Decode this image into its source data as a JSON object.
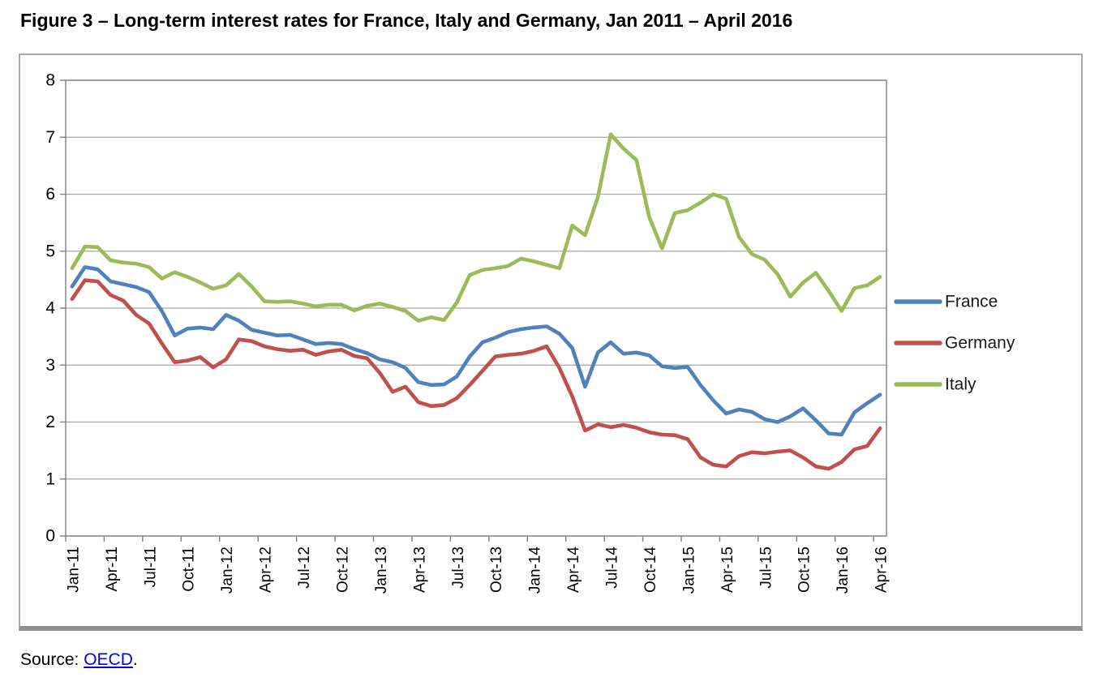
{
  "title": "Figure 3 – Long-term interest rates for France, Italy and Germany, Jan 2011 – April 2016",
  "source": {
    "prefix": "Source: ",
    "link_text": "OECD",
    "suffix": "."
  },
  "chart_data": {
    "type": "line",
    "title": "",
    "xlabel": "",
    "ylabel": "",
    "ylim": [
      0,
      8
    ],
    "yticks": [
      0,
      1,
      2,
      3,
      4,
      5,
      6,
      7,
      8
    ],
    "x_tick_every": 3,
    "grid": true,
    "legend_position": "right",
    "axis_color": "#808080",
    "grid_color": "#a6a6a6",
    "categories": [
      "Jan-11",
      "Feb-11",
      "Mar-11",
      "Apr-11",
      "May-11",
      "Jun-11",
      "Jul-11",
      "Aug-11",
      "Sep-11",
      "Oct-11",
      "Nov-11",
      "Dec-11",
      "Jan-12",
      "Feb-12",
      "Mar-12",
      "Apr-12",
      "May-12",
      "Jun-12",
      "Jul-12",
      "Aug-12",
      "Sep-12",
      "Oct-12",
      "Nov-12",
      "Dec-12",
      "Jan-13",
      "Feb-13",
      "Mar-13",
      "Apr-13",
      "May-13",
      "Jun-13",
      "Jul-13",
      "Aug-13",
      "Sep-13",
      "Oct-13",
      "Nov-13",
      "Dec-13",
      "Jan-14",
      "Feb-14",
      "Mar-14",
      "Apr-14",
      "May-14",
      "Jun-14",
      "Jul-14",
      "Aug-14",
      "Sep-14",
      "Oct-14",
      "Nov-14",
      "Dec-14",
      "Jan-15",
      "Feb-15",
      "Mar-15",
      "Apr-15",
      "May-15",
      "Jun-15",
      "Jul-15",
      "Aug-15",
      "Sep-15",
      "Oct-15",
      "Nov-15",
      "Dec-15",
      "Jan-16",
      "Feb-16",
      "Mar-16",
      "Apr-16"
    ],
    "series": [
      {
        "name": "France",
        "color": "#4F81BD",
        "values": [
          4.38,
          4.72,
          4.68,
          4.47,
          4.42,
          4.37,
          4.28,
          3.95,
          3.52,
          3.64,
          3.66,
          3.63,
          3.88,
          3.78,
          3.62,
          3.57,
          3.52,
          3.53,
          3.45,
          3.37,
          3.39,
          3.37,
          3.28,
          3.21,
          3.1,
          3.05,
          2.95,
          2.7,
          2.65,
          2.66,
          2.8,
          3.15,
          3.4,
          3.48,
          3.58,
          3.63,
          3.66,
          3.68,
          3.55,
          3.3,
          2.62,
          3.22,
          3.4,
          3.2,
          3.22,
          3.17,
          2.98,
          2.95,
          2.97,
          2.65,
          2.38,
          2.15,
          2.22,
          2.18,
          2.05,
          2.0,
          2.1,
          2.24,
          2.03,
          1.8,
          1.78,
          2.17,
          2.33,
          2.48
        ]
      },
      {
        "name": "Germany",
        "color": "#C0504D",
        "values": [
          4.16,
          4.49,
          4.47,
          4.23,
          4.13,
          3.88,
          3.73,
          3.38,
          3.05,
          3.08,
          3.14,
          2.96,
          3.1,
          3.45,
          3.42,
          3.33,
          3.28,
          3.25,
          3.27,
          3.18,
          3.24,
          3.27,
          3.16,
          3.12,
          2.86,
          2.53,
          2.62,
          2.35,
          2.28,
          2.3,
          2.42,
          2.65,
          2.9,
          3.15,
          3.18,
          3.2,
          3.25,
          3.33,
          2.95,
          2.45,
          1.85,
          1.96,
          1.91,
          1.95,
          1.9,
          1.82,
          1.78,
          1.77,
          1.7,
          1.38,
          1.25,
          1.22,
          1.4,
          1.47,
          1.45,
          1.48,
          1.5,
          1.38,
          1.22,
          1.18,
          1.3,
          1.52,
          1.58,
          1.89
        ]
      },
      {
        "name": "Italy",
        "color": "#9BBB59",
        "values": [
          4.7,
          5.08,
          5.07,
          4.84,
          4.8,
          4.78,
          4.72,
          4.52,
          4.63,
          4.55,
          4.45,
          4.34,
          4.4,
          4.6,
          4.38,
          4.12,
          4.11,
          4.12,
          4.08,
          4.03,
          4.06,
          4.06,
          3.96,
          4.04,
          4.08,
          4.02,
          3.95,
          3.78,
          3.84,
          3.79,
          4.1,
          4.58,
          4.67,
          4.7,
          4.74,
          4.87,
          4.82,
          4.76,
          4.7,
          5.45,
          5.28,
          5.95,
          7.05,
          6.8,
          6.6,
          5.6,
          5.05,
          5.67,
          5.72,
          5.85,
          6.0,
          5.92,
          5.25,
          4.95,
          4.85,
          4.6,
          4.2,
          4.45,
          4.62,
          4.3,
          3.95,
          4.35,
          4.4,
          4.55
        ]
      }
    ]
  }
}
